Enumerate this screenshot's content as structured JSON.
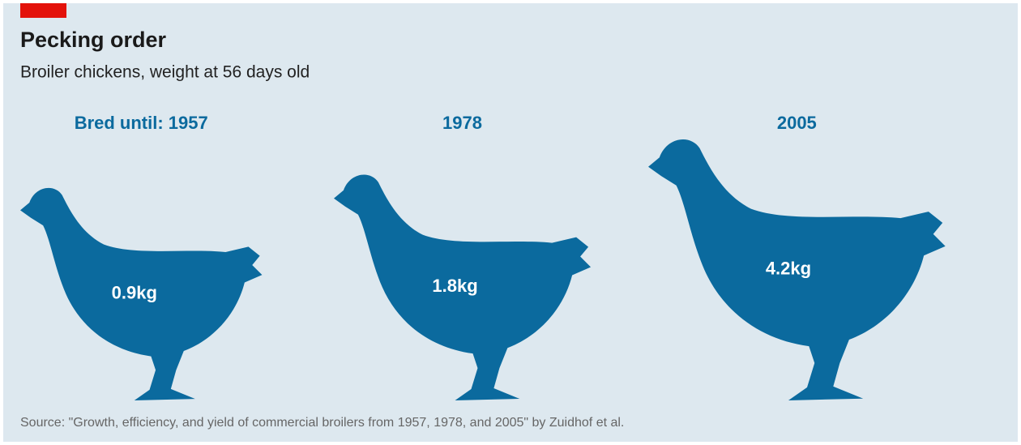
{
  "chart_data": {
    "type": "pictogram",
    "title": "Pecking order",
    "subtitle": "Broiler chickens, weight at 56 days old",
    "categories": [
      "Bred until: 1957",
      "1978",
      "2005"
    ],
    "values": [
      0.9,
      1.8,
      4.2
    ],
    "value_labels": [
      "0.9kg",
      "1.8kg",
      "4.2kg"
    ],
    "color": "#0b6a9e",
    "source": "Source: \"Growth, efficiency, and yield of commercial broilers from 1957, 1978, and 2005\" by Zuidhof et al."
  }
}
